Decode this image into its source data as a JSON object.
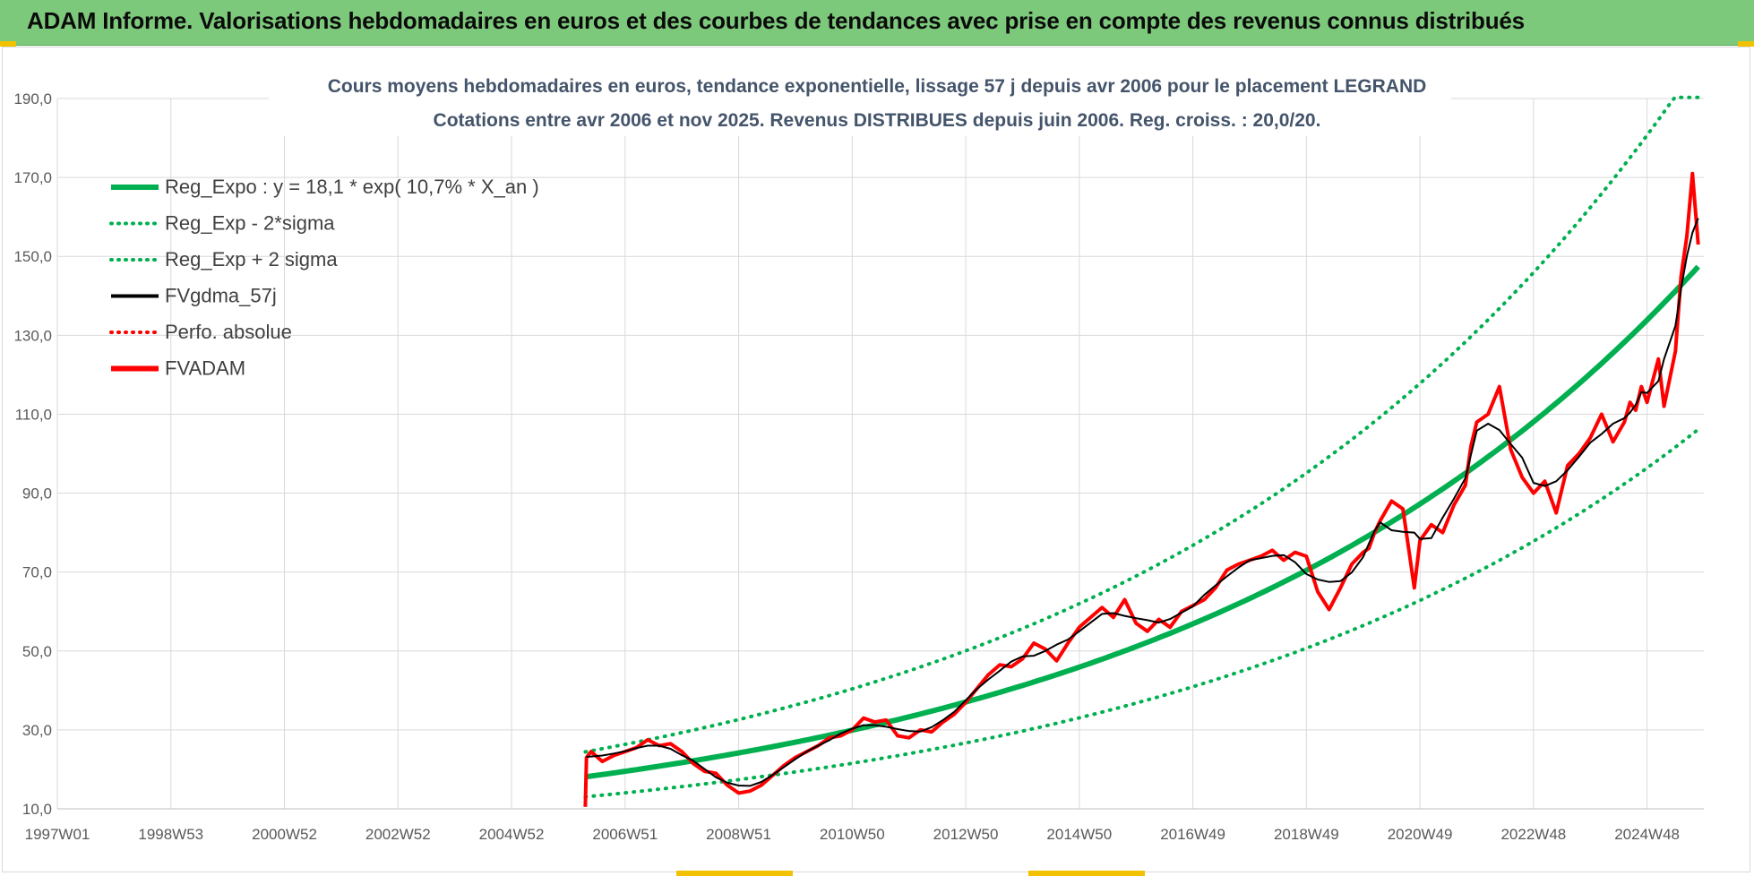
{
  "banner": {
    "title": "ADAM Informe. Valorisations hebdomadaires en euros et des courbes de tendances avec prise en compte des revenus connus distribués",
    "background": "#7dc97b"
  },
  "chart_data": {
    "type": "line",
    "title_line1": "Cours moyens hebdomadaires en euros, tendance exponentielle, lissage 57 j depuis avr 2006 pour le placement LEGRAND",
    "title_line2": "Cotations entre avr 2006 et nov 2025. Revenus DISTRIBUES depuis juin 2006. Reg. croiss. : 20,0/20.",
    "xlabel": "",
    "ylabel": "",
    "x_range_years": [
      1997.0,
      2026.0
    ],
    "ylim": [
      10,
      190
    ],
    "y_ticks": [
      "10,0",
      "30,0",
      "50,0",
      "70,0",
      "90,0",
      "110,0",
      "130,0",
      "150,0",
      "170,0",
      "190,0"
    ],
    "x_tick_labels": [
      "1997W01",
      "1998W53",
      "2000W52",
      "2002W52",
      "2004W52",
      "2006W51",
      "2008W51",
      "2010W50",
      "2012W50",
      "2014W50",
      "2016W49",
      "2018W49",
      "2020W49",
      "2022W48",
      "2024W48"
    ],
    "x_tick_years": [
      1997.0,
      1999.0,
      2001.0,
      2003.0,
      2005.0,
      2007.0,
      2009.0,
      2011.0,
      2013.0,
      2015.0,
      2017.0,
      2019.0,
      2021.0,
      2023.0,
      2025.0
    ],
    "grid": true,
    "legend_position": "top-left",
    "regression": {
      "a": 18.1,
      "rate": 0.107,
      "start_year": 2006.3,
      "end_year": 2025.9,
      "sigma_factor_low": 0.72,
      "sigma_factor_high": 1.35
    },
    "series": [
      {
        "name": "Reg_Expo : y = 18,1 * exp( 10,7% *  X_an )",
        "kind": "regression",
        "color": "#00b050",
        "style": "solid-thick"
      },
      {
        "name": "Reg_Exp - 2*sigma",
        "kind": "regression_low",
        "color": "#00b050",
        "style": "dotted"
      },
      {
        "name": "Reg_Exp + 2 sigma",
        "kind": "regression_high",
        "color": "#00b050",
        "style": "dotted"
      },
      {
        "name": "FVgdma_57j",
        "kind": "smooth",
        "color": "#000000",
        "style": "solid"
      },
      {
        "name": "Perfo. absolue",
        "kind": "perfo",
        "color": "#ff0000",
        "style": "dotted"
      },
      {
        "name": "FVADAM",
        "kind": "price",
        "color": "#ff0000",
        "style": "solid-thick",
        "x": [
          2006.3,
          2006.32,
          2006.4,
          2006.6,
          2006.8,
          2007.0,
          2007.2,
          2007.4,
          2007.6,
          2007.8,
          2008.0,
          2008.2,
          2008.4,
          2008.6,
          2008.8,
          2009.0,
          2009.2,
          2009.4,
          2009.6,
          2009.8,
          2010.0,
          2010.2,
          2010.4,
          2010.6,
          2010.8,
          2011.0,
          2011.2,
          2011.4,
          2011.6,
          2011.8,
          2012.0,
          2012.2,
          2012.4,
          2012.6,
          2012.8,
          2013.0,
          2013.2,
          2013.4,
          2013.6,
          2013.8,
          2014.0,
          2014.2,
          2014.4,
          2014.6,
          2014.8,
          2015.0,
          2015.2,
          2015.4,
          2015.6,
          2015.8,
          2016.0,
          2016.2,
          2016.4,
          2016.6,
          2016.8,
          2017.0,
          2017.2,
          2017.4,
          2017.6,
          2017.8,
          2018.0,
          2018.2,
          2018.4,
          2018.6,
          2018.8,
          2019.0,
          2019.2,
          2019.4,
          2019.6,
          2019.8,
          2020.0,
          2020.1,
          2020.2,
          2020.3,
          2020.5,
          2020.7,
          2020.9,
          2021.0,
          2021.2,
          2021.4,
          2021.6,
          2021.8,
          2021.9,
          2022.0,
          2022.2,
          2022.4,
          2022.6,
          2022.8,
          2023.0,
          2023.2,
          2023.4,
          2023.6,
          2023.8,
          2024.0,
          2024.2,
          2024.4,
          2024.6,
          2024.7,
          2024.8,
          2024.9,
          2025.0,
          2025.2,
          2025.3,
          2025.5,
          2025.6,
          2025.7,
          2025.8,
          2025.9
        ],
        "y": [
          10.5,
          23.0,
          24.5,
          22.0,
          23.5,
          24.5,
          25.5,
          27.5,
          26.0,
          26.5,
          24.5,
          21.5,
          19.5,
          19.0,
          16.0,
          14.0,
          14.5,
          16.0,
          18.5,
          21.0,
          23.0,
          24.5,
          26.0,
          28.0,
          28.5,
          30.0,
          33.0,
          32.0,
          32.5,
          28.5,
          28.0,
          30.0,
          29.5,
          32.0,
          34.0,
          37.0,
          40.5,
          44.0,
          46.5,
          46.0,
          48.0,
          52.0,
          50.5,
          47.5,
          52.0,
          56.0,
          58.5,
          61.0,
          58.5,
          63.0,
          57.0,
          55.0,
          58.0,
          56.0,
          60.0,
          61.5,
          63.0,
          66.0,
          70.5,
          72.0,
          73.0,
          74.0,
          75.5,
          73.0,
          75.0,
          74.0,
          65.0,
          60.5,
          66.0,
          72.0,
          75.0,
          76.0,
          80.0,
          83.0,
          88.0,
          86.0,
          66.0,
          78.0,
          82.0,
          80.0,
          87.0,
          92.0,
          102.0,
          108.0,
          110.0,
          117.0,
          101.0,
          94.0,
          90.0,
          93.0,
          85.0,
          97.0,
          100.0,
          104.0,
          110.0,
          103.0,
          108.0,
          113.0,
          111.0,
          117.0,
          113.0,
          124.0,
          112.0,
          126.0,
          145.0,
          155.0,
          171.0,
          153.0
        ]
      }
    ]
  }
}
